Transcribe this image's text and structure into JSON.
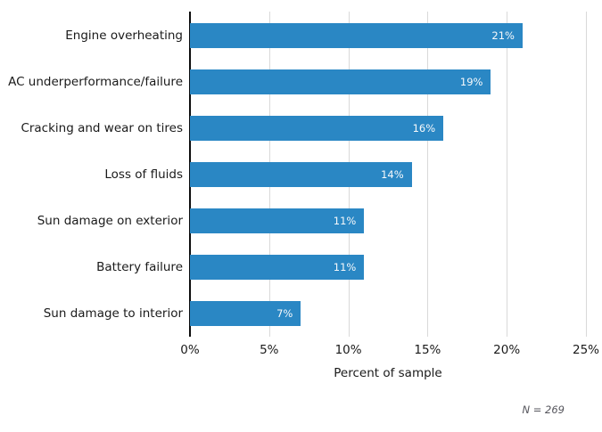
{
  "chart_data": {
    "type": "bar",
    "orientation": "horizontal",
    "title": "",
    "categories": [
      "Engine overheating",
      "AC underperformance/failure",
      "Cracking and wear on tires",
      "Loss of fluids",
      "Sun damage on exterior",
      "Battery failure",
      "Sun damage to interior"
    ],
    "values": [
      21,
      19,
      16,
      14,
      11,
      11,
      7
    ],
    "value_labels": [
      "21%",
      "19%",
      "16%",
      "14%",
      "11%",
      "11%",
      "7%"
    ],
    "xlabel": "Percent of sample",
    "ylabel": "",
    "xlim": [
      0,
      25
    ],
    "xtick_values": [
      0,
      5,
      10,
      15,
      20,
      25
    ],
    "xtick_labels": [
      "0%",
      "5%",
      "10%",
      "15%",
      "20%",
      "25%"
    ],
    "grid": "vertical",
    "legend": "none",
    "note": "N = 269",
    "colors": {
      "bar": "#2a87c4",
      "gridline": "#d9d9d9",
      "axis": "#0d0d0d",
      "bar_value_text": "#f7f9fb",
      "label_text": "#1a1a1a",
      "note_text": "#55555c"
    }
  }
}
